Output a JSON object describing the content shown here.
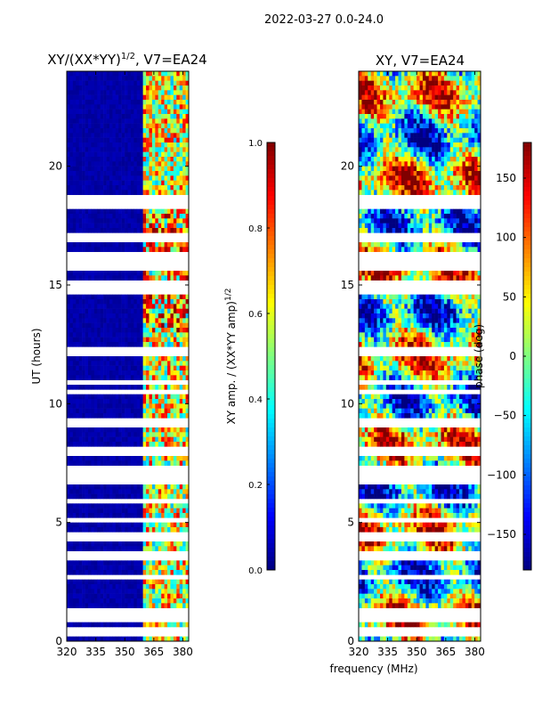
{
  "figure_title": "2022-03-27 0.0-24.0",
  "chart_data": [
    {
      "type": "heatmap",
      "title": "XY/(XX*YY)",
      "title_exponent": "1/2",
      "title_suffix": ", V7=EA24",
      "xlabel": "",
      "ylabel": "UT (hours)",
      "xlim": [
        320,
        383
      ],
      "ylim": [
        0,
        24
      ],
      "xticks": [
        320,
        335,
        350,
        365,
        380
      ],
      "yticks": [
        0,
        5,
        10,
        15,
        20
      ],
      "colorbar": {
        "label": "XY amp. / (XX*YY amp)",
        "label_exponent": "1/2",
        "range": [
          0.0,
          1.0
        ],
        "ticks": [
          "0.0",
          "0.2",
          "0.4",
          "0.6",
          "0.8",
          "1.0"
        ],
        "tick_values": [
          0.0,
          0.2,
          0.4,
          0.6,
          0.8,
          1.0
        ],
        "colormap": "jet"
      },
      "description_data": {
        "low_value_band_mhz": [
          320,
          360
        ],
        "high_value_band_mhz": [
          360,
          383
        ],
        "typical_low_amp": 0.02,
        "typical_high_amp_range": [
          0.3,
          0.9
        ]
      }
    },
    {
      "type": "heatmap",
      "title": "XY, V7=EA24",
      "xlabel": "frequency (MHz)",
      "ylabel": "",
      "xlim": [
        320,
        383
      ],
      "ylim": [
        0,
        24
      ],
      "xticks": [
        320,
        335,
        350,
        365,
        380
      ],
      "yticks": [
        0,
        5,
        10,
        15,
        20
      ],
      "colorbar": {
        "label": "phase (deg)",
        "range": [
          -180,
          180
        ],
        "ticks": [
          "150",
          "100",
          "50",
          "0",
          "−50",
          "−100",
          "−150"
        ],
        "tick_values": [
          150,
          100,
          50,
          0,
          -50,
          -100,
          -150
        ],
        "colormap": "jet"
      }
    }
  ],
  "gaps_ut_hours": [
    18.4,
    18.55,
    18.7,
    17.0,
    16.2,
    15.8,
    15.1,
    14.8,
    12.1,
    12.2,
    10.5,
    10.9,
    9.2,
    8.0,
    7.9,
    7.3,
    7.0,
    6.7,
    5.9,
    5.1,
    4.4,
    3.6,
    3.5,
    2.7,
    1.2,
    0.9,
    0.4
  ]
}
